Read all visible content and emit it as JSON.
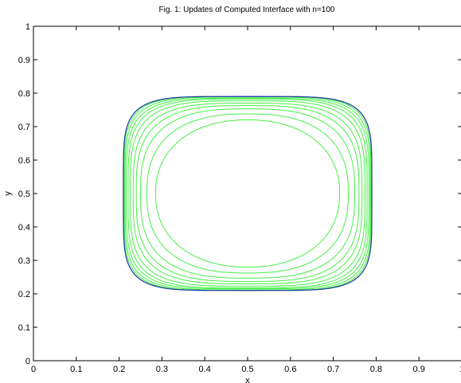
{
  "chart_data": {
    "type": "line",
    "title": "Fig. 1: Updates of Computed Interface with n=100",
    "xlabel": "x",
    "ylabel": "y",
    "xlim": [
      0,
      1
    ],
    "ylim": [
      0,
      1
    ],
    "xticks": [
      "0",
      "0.1",
      "0.2",
      "0.3",
      "0.4",
      "0.5",
      "0.6",
      "0.7",
      "0.8",
      "0.9",
      "1"
    ],
    "yticks": [
      "0",
      "0.1",
      "0.2",
      "0.3",
      "0.4",
      "0.5",
      "0.6",
      "0.7",
      "0.8",
      "0.9",
      "1"
    ],
    "grid": false,
    "legend": "none",
    "colors": {
      "updates": "#33ee33",
      "final": "#1c3f9e",
      "axes": "#000000",
      "background": "#ffffff"
    },
    "center": [
      0.5,
      0.5
    ],
    "series": [
      {
        "halfwidth_x": 0.215,
        "halfwidth_y": 0.22,
        "exponent": 2.2,
        "color_key": "updates"
      },
      {
        "halfwidth_x": 0.235,
        "halfwidth_y": 0.238,
        "exponent": 2.5,
        "color_key": "updates"
      },
      {
        "halfwidth_x": 0.25,
        "halfwidth_y": 0.253,
        "exponent": 2.8,
        "color_key": "updates"
      },
      {
        "halfwidth_x": 0.26,
        "halfwidth_y": 0.263,
        "exponent": 3.1,
        "color_key": "updates"
      },
      {
        "halfwidth_x": 0.267,
        "halfwidth_y": 0.27,
        "exponent": 3.4,
        "color_key": "updates"
      },
      {
        "halfwidth_x": 0.274,
        "halfwidth_y": 0.277,
        "exponent": 3.7,
        "color_key": "updates"
      },
      {
        "halfwidth_x": 0.279,
        "halfwidth_y": 0.282,
        "exponent": 4.0,
        "color_key": "updates"
      },
      {
        "halfwidth_x": 0.283,
        "halfwidth_y": 0.285,
        "exponent": 4.3,
        "color_key": "updates"
      },
      {
        "halfwidth_x": 0.286,
        "halfwidth_y": 0.288,
        "exponent": 4.6,
        "color_key": "updates"
      },
      {
        "halfwidth_x": 0.288,
        "halfwidth_y": 0.29,
        "exponent": 4.9,
        "color_key": "updates"
      },
      {
        "halfwidth_x": 0.29,
        "halfwidth_y": 0.29,
        "exponent": 5.2,
        "color_key": "final"
      }
    ]
  }
}
